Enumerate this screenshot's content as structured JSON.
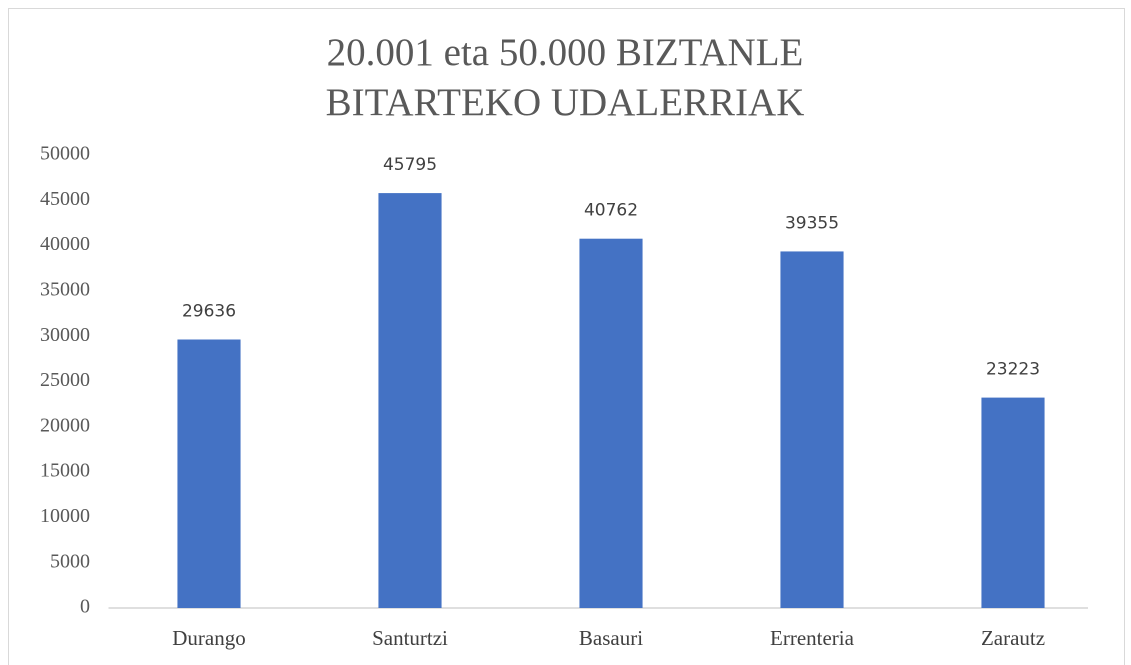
{
  "chart_data": {
    "type": "bar",
    "title": "20.001 eta 50.000 BIZTANLE BITARTEKO UDALERRIAK",
    "categories": [
      "Durango",
      "Santurtzi",
      "Basauri",
      "Errenteria",
      "Zarautz"
    ],
    "values": [
      29636,
      45795,
      40762,
      39355,
      23223
    ],
    "color": "#4472c4",
    "ylim": [
      0,
      50000
    ],
    "yticks": [
      0,
      5000,
      10000,
      15000,
      20000,
      25000,
      30000,
      35000,
      40000,
      45000,
      50000
    ],
    "grid": false
  }
}
